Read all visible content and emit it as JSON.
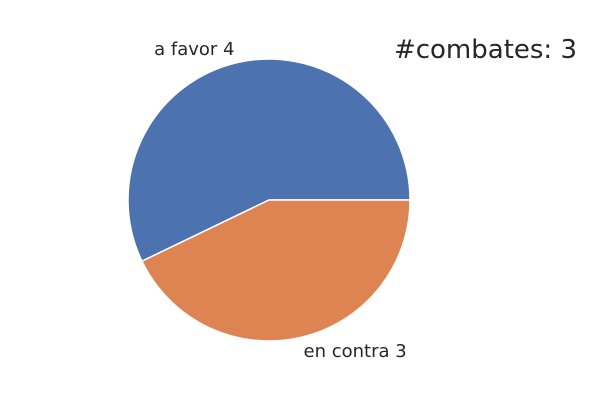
{
  "chart_data": {
    "type": "pie",
    "title": "#combates: 3",
    "categories": [
      "a favor",
      "en contra"
    ],
    "values": [
      4,
      3
    ],
    "labels": [
      "a favor 4",
      "en contra 3"
    ],
    "colors": [
      "#4c72b0",
      "#dd8452"
    ],
    "start_angle_deg": 0,
    "direction": "counterclockwise",
    "legend": "none"
  }
}
